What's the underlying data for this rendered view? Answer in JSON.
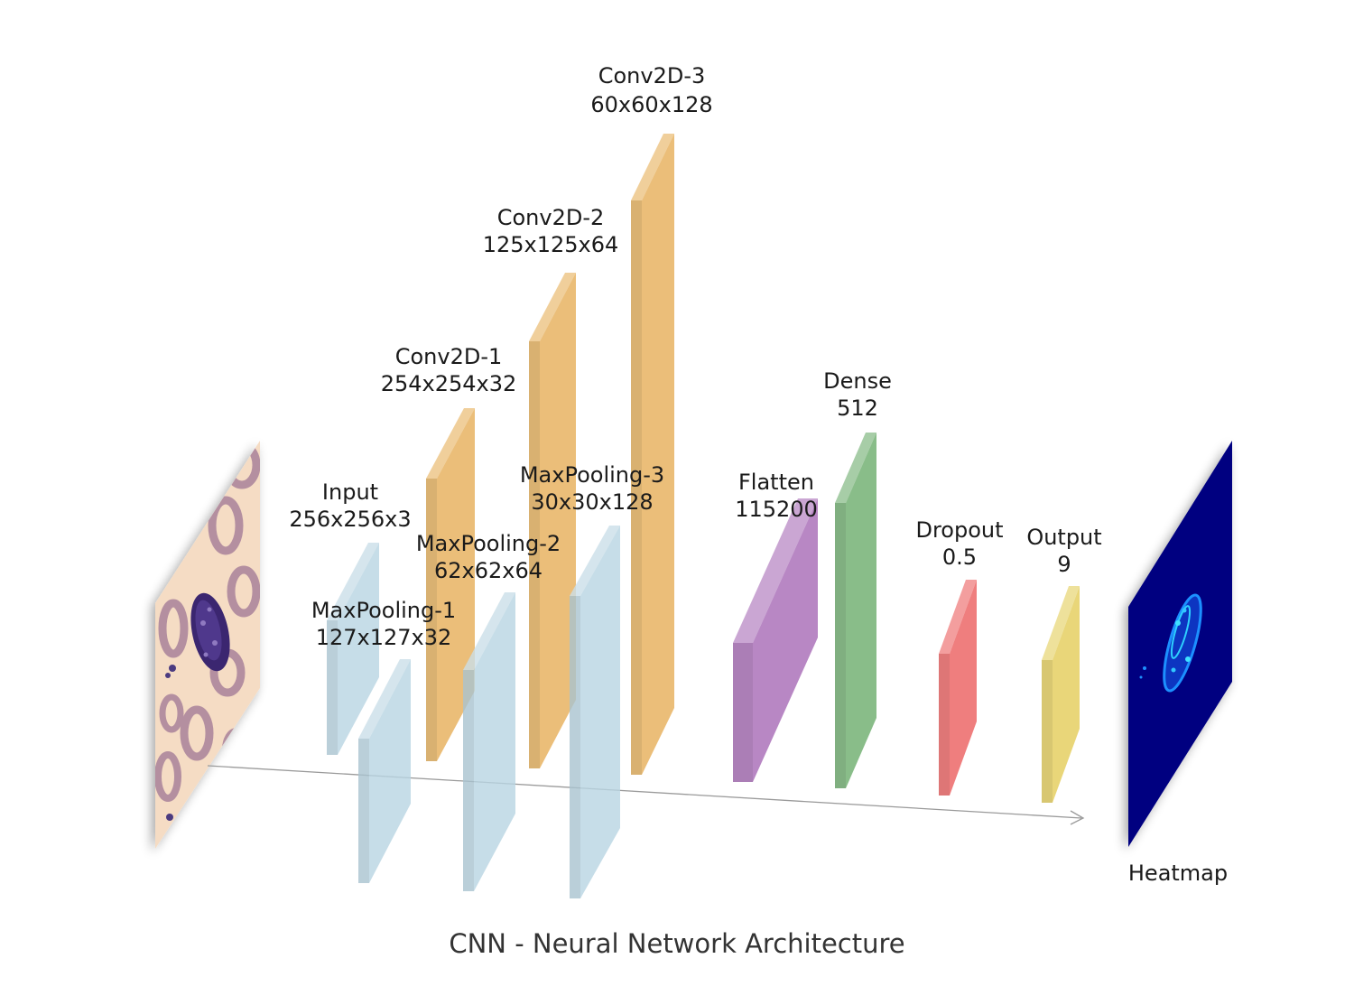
{
  "title": "CNN - Neural Network Architecture",
  "colors": {
    "conv": "#E9B96E",
    "pool": "#B8D4E2",
    "flatten": "#B27DBF",
    "dense": "#7FB77F",
    "dropout": "#EE7373",
    "output": "#E7D36E",
    "heatmap_bg": "#000080",
    "heatmap_hot": "#1e90ff",
    "slide_bg": "#F5DCC4"
  },
  "layers": [
    {
      "id": "input",
      "name": "Input",
      "size": "256x256x3",
      "kind": "pool"
    },
    {
      "id": "maxpool1",
      "name": "MaxPooling-1",
      "size": "127x127x32",
      "kind": "pool"
    },
    {
      "id": "conv1",
      "name": "Conv2D-1",
      "size": "254x254x32",
      "kind": "conv"
    },
    {
      "id": "maxpool2",
      "name": "MaxPooling-2",
      "size": "62x62x64",
      "kind": "pool"
    },
    {
      "id": "conv2",
      "name": "Conv2D-2",
      "size": "125x125x64",
      "kind": "conv"
    },
    {
      "id": "maxpool3",
      "name": "MaxPooling-3",
      "size": "30x30x128",
      "kind": "pool"
    },
    {
      "id": "conv3",
      "name": "Conv2D-3",
      "size": "60x60x128",
      "kind": "conv"
    },
    {
      "id": "flatten",
      "name": "Flatten",
      "size": "115200",
      "kind": "flatten"
    },
    {
      "id": "dense",
      "name": "Dense",
      "size": "512",
      "kind": "dense"
    },
    {
      "id": "dropout",
      "name": "Dropout",
      "size": "0.5",
      "kind": "dropout"
    },
    {
      "id": "output",
      "name": "Output",
      "size": "9",
      "kind": "output"
    }
  ],
  "heatmap": {
    "label": "Heatmap"
  }
}
